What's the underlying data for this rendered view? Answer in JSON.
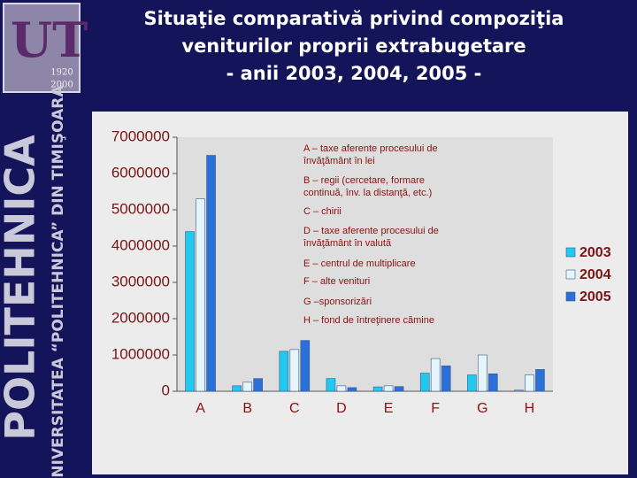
{
  "branding": {
    "logo_years": [
      "1920",
      "2000"
    ],
    "name": "POLITEHNICA",
    "university": "UNIVERSITATEA “POLITEHNICA” DIN TIMIŞOARA"
  },
  "chart_data": {
    "type": "bar",
    "title": [
      "Situaţie comparativă privind compoziţia",
      "veniturilor proprii extrabugetare",
      "- anii 2003, 2004, 2005 -"
    ],
    "categories": [
      "A",
      "B",
      "C",
      "D",
      "E",
      "F",
      "G",
      "H"
    ],
    "series": [
      {
        "name": "2003",
        "color": "#22c8ee",
        "values": [
          4400000,
          150000,
          1100000,
          350000,
          120000,
          500000,
          450000,
          30000
        ]
      },
      {
        "name": "2004",
        "color": "#e4f6fc",
        "values": [
          5300000,
          250000,
          1150000,
          150000,
          150000,
          900000,
          1000000,
          450000
        ]
      },
      {
        "name": "2005",
        "color": "#2a70d8",
        "values": [
          6500000,
          350000,
          1400000,
          100000,
          130000,
          700000,
          480000,
          600000
        ]
      }
    ],
    "ylim": [
      0,
      7000000
    ],
    "yticks": [
      0,
      1000000,
      2000000,
      3000000,
      4000000,
      5000000,
      6000000,
      7000000
    ],
    "legend": "right",
    "annotations": [
      [
        "A – taxe aferente procesului de",
        "învăţământ în lei"
      ],
      [
        "B – regii (cercetare, formare",
        "continuă, înv. la distanţă, etc.)"
      ],
      [
        "C – chirii"
      ],
      [
        "D – taxe aferente procesului de",
        "învăţământ în valută"
      ],
      [
        "E – centrul de multiplicare"
      ],
      [
        "F – alte venituri"
      ],
      [
        "G –sponsorizări"
      ],
      [
        "H – fond de întreţinere cămine"
      ]
    ]
  }
}
